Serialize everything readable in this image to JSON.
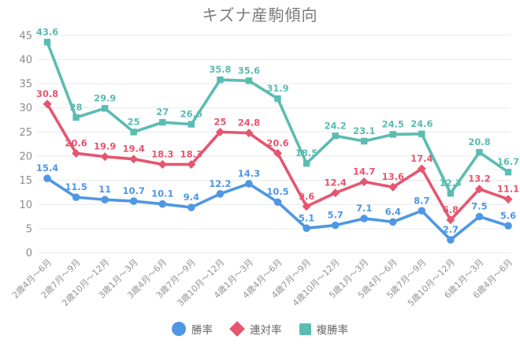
{
  "title": "キズナ産駒傾向",
  "chart_data": {
    "type": "line",
    "title": "キズナ産駒傾向",
    "categories": [
      "2歳4月～6月",
      "2歳7月～9月",
      "2歳10月～12月",
      "3歳1月～3月",
      "3歳4月～6月",
      "3歳7月～9月",
      "3歳10月～12月",
      "4歳1月～3月",
      "4歳4月～6月",
      "4歳7月～9月",
      "4歳10月～12月",
      "5歳1月～3月",
      "5歳4月～6月",
      "5歳7月～9月",
      "5歳10月～12月",
      "6歳1月～3月",
      "6歳4月～6月"
    ],
    "series": [
      {
        "id": "win-rate",
        "name": "勝率",
        "marker": "circle",
        "color": "#4e97e4",
        "values": [
          15.4,
          11.5,
          11,
          10.7,
          10.1,
          9.4,
          12.2,
          14.3,
          10.5,
          5.1,
          5.7,
          7.1,
          6.4,
          8.7,
          2.7,
          7.5,
          5.6
        ]
      },
      {
        "id": "place-rate",
        "name": "連対率",
        "marker": "diamond",
        "color": "#e5566f",
        "values": [
          30.8,
          20.6,
          19.9,
          19.4,
          18.3,
          18.3,
          25,
          24.8,
          20.6,
          9.6,
          12.4,
          14.7,
          13.6,
          17.4,
          6.8,
          13.2,
          11.1
        ]
      },
      {
        "id": "show-rate",
        "name": "複勝率",
        "marker": "square",
        "color": "#5bbcb2",
        "values": [
          43.6,
          28,
          29.9,
          25,
          27,
          26.6,
          35.8,
          35.6,
          31.9,
          18.5,
          24.2,
          23.1,
          24.5,
          24.6,
          12.3,
          20.8,
          16.7
        ]
      }
    ],
    "ylim": [
      0,
      45
    ],
    "yticks": [
      0,
      5,
      10,
      15,
      20,
      25,
      30,
      35,
      40,
      45
    ],
    "grid": true,
    "legend_position": "bottom",
    "data_labels": true
  },
  "style_colors": {
    "grid": "#e9e9e9",
    "ytick_text": "#8c8c8c",
    "xtick_text": "#949494",
    "title_text": "#7a7a7a"
  }
}
